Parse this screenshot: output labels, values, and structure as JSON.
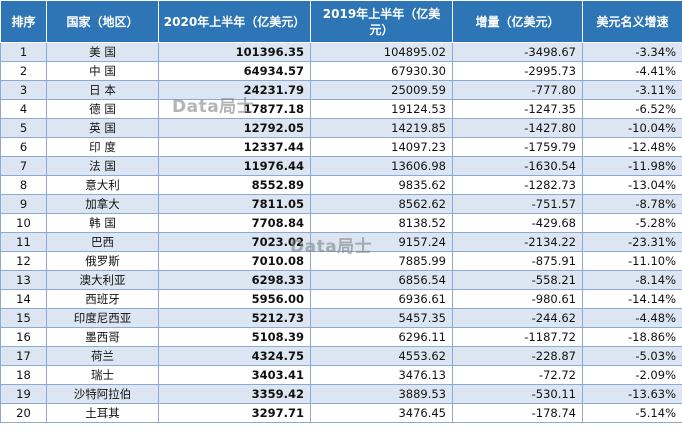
{
  "table": {
    "headers": [
      "排序",
      "国家（地区）",
      "2020年上半年（亿美元）",
      "2019年上半年（亿美元）",
      "增量（亿美元）",
      "美元名义增速"
    ],
    "rows": [
      {
        "rank": "1",
        "country": "美 国",
        "v2020": "101396.35",
        "v2019": "104895.02",
        "inc": "-3498.67",
        "pct": "-3.34%"
      },
      {
        "rank": "2",
        "country": "中 国",
        "v2020": "64934.57",
        "v2019": "67930.30",
        "inc": "-2995.73",
        "pct": "-4.41%"
      },
      {
        "rank": "3",
        "country": "日 本",
        "v2020": "24231.79",
        "v2019": "25009.59",
        "inc": "-777.80",
        "pct": "-3.11%"
      },
      {
        "rank": "4",
        "country": "德 国",
        "v2020": "17877.18",
        "v2019": "19124.53",
        "inc": "-1247.35",
        "pct": "-6.52%"
      },
      {
        "rank": "5",
        "country": "英 国",
        "v2020": "12792.05",
        "v2019": "14219.85",
        "inc": "-1427.80",
        "pct": "-10.04%"
      },
      {
        "rank": "6",
        "country": "印 度",
        "v2020": "12337.44",
        "v2019": "14097.23",
        "inc": "-1759.79",
        "pct": "-12.48%"
      },
      {
        "rank": "7",
        "country": "法 国",
        "v2020": "11976.44",
        "v2019": "13606.98",
        "inc": "-1630.54",
        "pct": "-11.98%"
      },
      {
        "rank": "8",
        "country": "意大利",
        "v2020": "8552.89",
        "v2019": "9835.62",
        "inc": "-1282.73",
        "pct": "-13.04%"
      },
      {
        "rank": "9",
        "country": "加拿大",
        "v2020": "7811.05",
        "v2019": "8562.62",
        "inc": "-751.57",
        "pct": "-8.78%"
      },
      {
        "rank": "10",
        "country": "韩 国",
        "v2020": "7708.84",
        "v2019": "8138.52",
        "inc": "-429.68",
        "pct": "-5.28%"
      },
      {
        "rank": "11",
        "country": "巴西",
        "v2020": "7023.02",
        "v2019": "9157.24",
        "inc": "-2134.22",
        "pct": "-23.31%"
      },
      {
        "rank": "12",
        "country": "俄罗斯",
        "v2020": "7010.08",
        "v2019": "7885.99",
        "inc": "-875.91",
        "pct": "-11.10%"
      },
      {
        "rank": "13",
        "country": "澳大利亚",
        "v2020": "6298.33",
        "v2019": "6856.54",
        "inc": "-558.21",
        "pct": "-8.14%"
      },
      {
        "rank": "14",
        "country": "西班牙",
        "v2020": "5956.00",
        "v2019": "6936.61",
        "inc": "-980.61",
        "pct": "-14.14%"
      },
      {
        "rank": "15",
        "country": "印度尼西亚",
        "v2020": "5212.73",
        "v2019": "5457.35",
        "inc": "-244.62",
        "pct": "-4.48%"
      },
      {
        "rank": "16",
        "country": "墨西哥",
        "v2020": "5108.39",
        "v2019": "6296.11",
        "inc": "-1187.72",
        "pct": "-18.86%"
      },
      {
        "rank": "17",
        "country": "荷兰",
        "v2020": "4324.75",
        "v2019": "4553.62",
        "inc": "-228.87",
        "pct": "-5.03%"
      },
      {
        "rank": "18",
        "country": "瑞士",
        "v2020": "3403.41",
        "v2019": "3476.13",
        "inc": "-72.72",
        "pct": "-2.09%"
      },
      {
        "rank": "19",
        "country": "沙特阿拉伯",
        "v2020": "3359.42",
        "v2019": "3889.53",
        "inc": "-530.11",
        "pct": "-13.63%"
      },
      {
        "rank": "20",
        "country": "土耳其",
        "v2020": "3297.71",
        "v2019": "3476.45",
        "inc": "-178.74",
        "pct": "-5.14%"
      }
    ]
  },
  "watermark": "Data局士",
  "colors": {
    "header": "#2e75b6",
    "odd_row": "#dce6f2",
    "even_row": "#ffffff",
    "border": "#8eaad2"
  }
}
